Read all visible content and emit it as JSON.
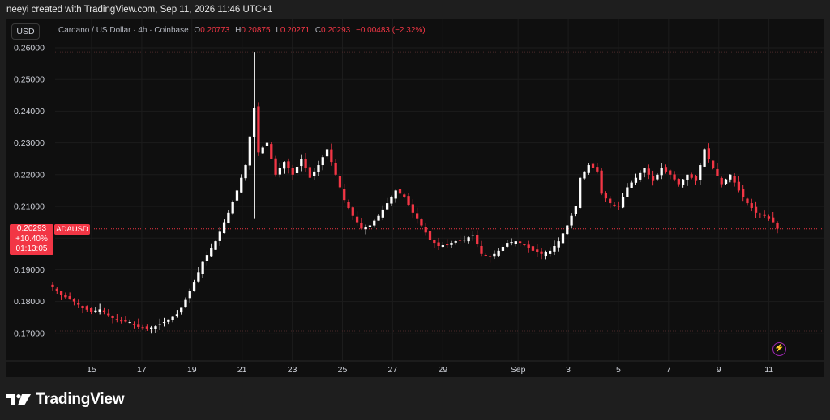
{
  "header": {
    "attribution": "neeyi created with TradingView.com, Sep 11, 2026 11:46 UTC+1"
  },
  "toolbar": {
    "currency_button": "USD"
  },
  "legend": {
    "symbol": "Cardano / US Dollar · 4h · Coinbase",
    "open_label": "O",
    "open_value": "0.20773",
    "high_label": "H",
    "high_value": "0.20875",
    "low_label": "L",
    "low_value": "0.20271",
    "close_label": "C",
    "close_value": "0.20293",
    "change": "−0.00483 (−2.32%)"
  },
  "last_price": {
    "price": "0.20293",
    "change_pct": "+10.40%",
    "countdown": "01:13:05",
    "ticker": "ADAUSD"
  },
  "footer": {
    "brand": "TradingView"
  },
  "colors": {
    "up": "#ffffff",
    "down": "#f23645",
    "grid": "#1c1c1c",
    "background": "#0f0f0f",
    "accent": "#f23645"
  },
  "icons": {
    "alert": "lightning-icon",
    "logo": "tradingview-logo-icon"
  },
  "chart_data": {
    "type": "candlestick",
    "title": "Cardano / US Dollar · 4h · Coinbase",
    "ylim": [
      0.165,
      0.262
    ],
    "y_ticks": [
      "0.26000",
      "0.25000",
      "0.24000",
      "0.23000",
      "0.22000",
      "0.21000",
      "0.20000",
      "0.19000",
      "0.18000",
      "0.17000"
    ],
    "y_tick_values": [
      0.26,
      0.25,
      0.24,
      0.23,
      0.22,
      0.21,
      0.2,
      0.19,
      0.18,
      0.17
    ],
    "x_ticks": [
      {
        "label": "15",
        "day": 15
      },
      {
        "label": "17",
        "day": 17
      },
      {
        "label": "19",
        "day": 19
      },
      {
        "label": "21",
        "day": 21
      },
      {
        "label": "23",
        "day": 23
      },
      {
        "label": "25",
        "day": 25
      },
      {
        "label": "27",
        "day": 27
      },
      {
        "label": "29",
        "day": 29
      },
      {
        "label": "Sep",
        "day": 32
      },
      {
        "label": "3",
        "day": 34
      },
      {
        "label": "5",
        "day": 36
      },
      {
        "label": "7",
        "day": 38
      },
      {
        "label": "9",
        "day": 40
      },
      {
        "label": "11",
        "day": 42
      }
    ],
    "range_lines": [
      0.2587,
      0.1707
    ],
    "last_close": 0.20293,
    "anchors": [
      [
        0,
        0.1845
      ],
      [
        2,
        0.182
      ],
      [
        5,
        0.18
      ],
      [
        7,
        0.178
      ],
      [
        9,
        0.1768
      ],
      [
        11,
        0.1775
      ],
      [
        14,
        0.1748
      ],
      [
        16,
        0.1738
      ],
      [
        18,
        0.1735
      ],
      [
        20,
        0.172
      ],
      [
        22,
        0.1715
      ],
      [
        24,
        0.1722
      ],
      [
        26,
        0.1735
      ],
      [
        29,
        0.176
      ],
      [
        31,
        0.1805
      ],
      [
        33,
        0.186
      ],
      [
        35,
        0.1925
      ],
      [
        38,
        0.199
      ],
      [
        41,
        0.208
      ],
      [
        43,
        0.215
      ],
      [
        45,
        0.223
      ],
      [
        47,
        0.241
      ],
      [
        48,
        0.227
      ],
      [
        50,
        0.23
      ],
      [
        52,
        0.22
      ],
      [
        54,
        0.224
      ],
      [
        56,
        0.22
      ],
      [
        58,
        0.225
      ],
      [
        60,
        0.219
      ],
      [
        62,
        0.223
      ],
      [
        64,
        0.228
      ],
      [
        66,
        0.22
      ],
      [
        68,
        0.212
      ],
      [
        70,
        0.207
      ],
      [
        72,
        0.203
      ],
      [
        74,
        0.204
      ],
      [
        76,
        0.207
      ],
      [
        78,
        0.211
      ],
      [
        80,
        0.215
      ],
      [
        82,
        0.213
      ],
      [
        84,
        0.208
      ],
      [
        86,
        0.204
      ],
      [
        88,
        0.1995
      ],
      [
        90,
        0.1975
      ],
      [
        92,
        0.198
      ],
      [
        94,
        0.199
      ],
      [
        96,
        0.1995
      ],
      [
        98,
        0.201
      ],
      [
        100,
        0.195
      ],
      [
        102,
        0.194
      ],
      [
        104,
        0.196
      ],
      [
        106,
        0.1985
      ],
      [
        108,
        0.199
      ],
      [
        110,
        0.198
      ],
      [
        112,
        0.196
      ],
      [
        114,
        0.195
      ],
      [
        116,
        0.196
      ],
      [
        118,
        0.199
      ],
      [
        120,
        0.204
      ],
      [
        122,
        0.21
      ],
      [
        123,
        0.219
      ],
      [
        125,
        0.223
      ],
      [
        127,
        0.221
      ],
      [
        128,
        0.214
      ],
      [
        130,
        0.211
      ],
      [
        132,
        0.21
      ],
      [
        134,
        0.216
      ],
      [
        136,
        0.219
      ],
      [
        138,
        0.222
      ],
      [
        140,
        0.218
      ],
      [
        142,
        0.222
      ],
      [
        144,
        0.22
      ],
      [
        146,
        0.217
      ],
      [
        148,
        0.22
      ],
      [
        150,
        0.218
      ],
      [
        152,
        0.228
      ],
      [
        154,
        0.222
      ],
      [
        156,
        0.217
      ],
      [
        158,
        0.22
      ],
      [
        160,
        0.215
      ],
      [
        162,
        0.211
      ],
      [
        164,
        0.208
      ],
      [
        166,
        0.207
      ],
      [
        168,
        0.205
      ],
      [
        169,
        0.203
      ]
    ],
    "spike": {
      "index": 47,
      "high": 0.2587,
      "low": 0.206
    }
  }
}
